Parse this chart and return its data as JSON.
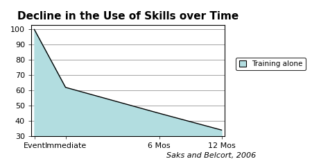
{
  "title": "Decline in the Use of Skills over Time",
  "x_labels": [
    "Event",
    "Immediate",
    "6 Mos",
    "12 Mos"
  ],
  "x_positions": [
    0,
    1,
    4,
    6
  ],
  "y_values": [
    100,
    62,
    45,
    34
  ],
  "ylim": [
    30,
    103
  ],
  "yticks": [
    30,
    40,
    50,
    60,
    70,
    80,
    90,
    100
  ],
  "xlim": [
    -0.1,
    6.1
  ],
  "fill_color": "#b2dde0",
  "line_color": "#000000",
  "legend_label": "Training alone",
  "legend_box_color": "#b2dde0",
  "citation": "Saks and Belcort, 2006",
  "bg_color": "#ffffff",
  "title_fontsize": 11,
  "tick_fontsize": 8,
  "citation_fontsize": 8
}
